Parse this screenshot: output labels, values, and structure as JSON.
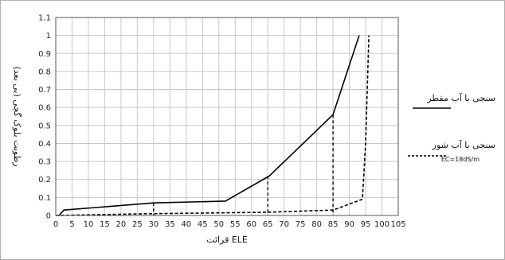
{
  "chart_data": {
    "type": "line",
    "title": "",
    "xlabel": "قرائت ELE",
    "ylabel": "رطوبت بلوک گچی (بی بعد)",
    "xlim": [
      0,
      105
    ],
    "ylim": [
      0,
      1.1
    ],
    "xticks": [
      0,
      5,
      10,
      15,
      20,
      25,
      30,
      35,
      40,
      45,
      50,
      55,
      60,
      65,
      70,
      75,
      80,
      85,
      90,
      95,
      100,
      105
    ],
    "yticks": [
      0,
      0.1,
      0.2,
      0.3,
      0.4,
      0.5,
      0.6,
      0.7,
      0.8,
      0.9,
      1,
      1.1
    ],
    "grid": true,
    "series": [
      {
        "name": "سنجی با آب مقطر",
        "style": "solid",
        "color": "#000000",
        "x": [
          1,
          2.5,
          30,
          52,
          65.5,
          85,
          93
        ],
        "y": [
          0,
          0.03,
          0.07,
          0.08,
          0.22,
          0.56,
          1.0
        ]
      },
      {
        "name": "سنجی با آب شور",
        "note": "EC=18dS/m",
        "style": "dashed",
        "color": "#000000",
        "x": [
          0,
          30,
          52,
          65,
          85,
          94,
          95,
          96
        ],
        "y": [
          0,
          0.01,
          0.015,
          0.018,
          0.03,
          0.09,
          0.4,
          1.0
        ]
      }
    ],
    "drop_lines": [
      {
        "x": 30,
        "y": 0.07,
        "style": "dashed"
      },
      {
        "x": 65,
        "y": 0.22,
        "style": "dashed"
      },
      {
        "x": 85,
        "y": 0.56,
        "style": "dashed"
      }
    ],
    "legend_position": "right"
  }
}
